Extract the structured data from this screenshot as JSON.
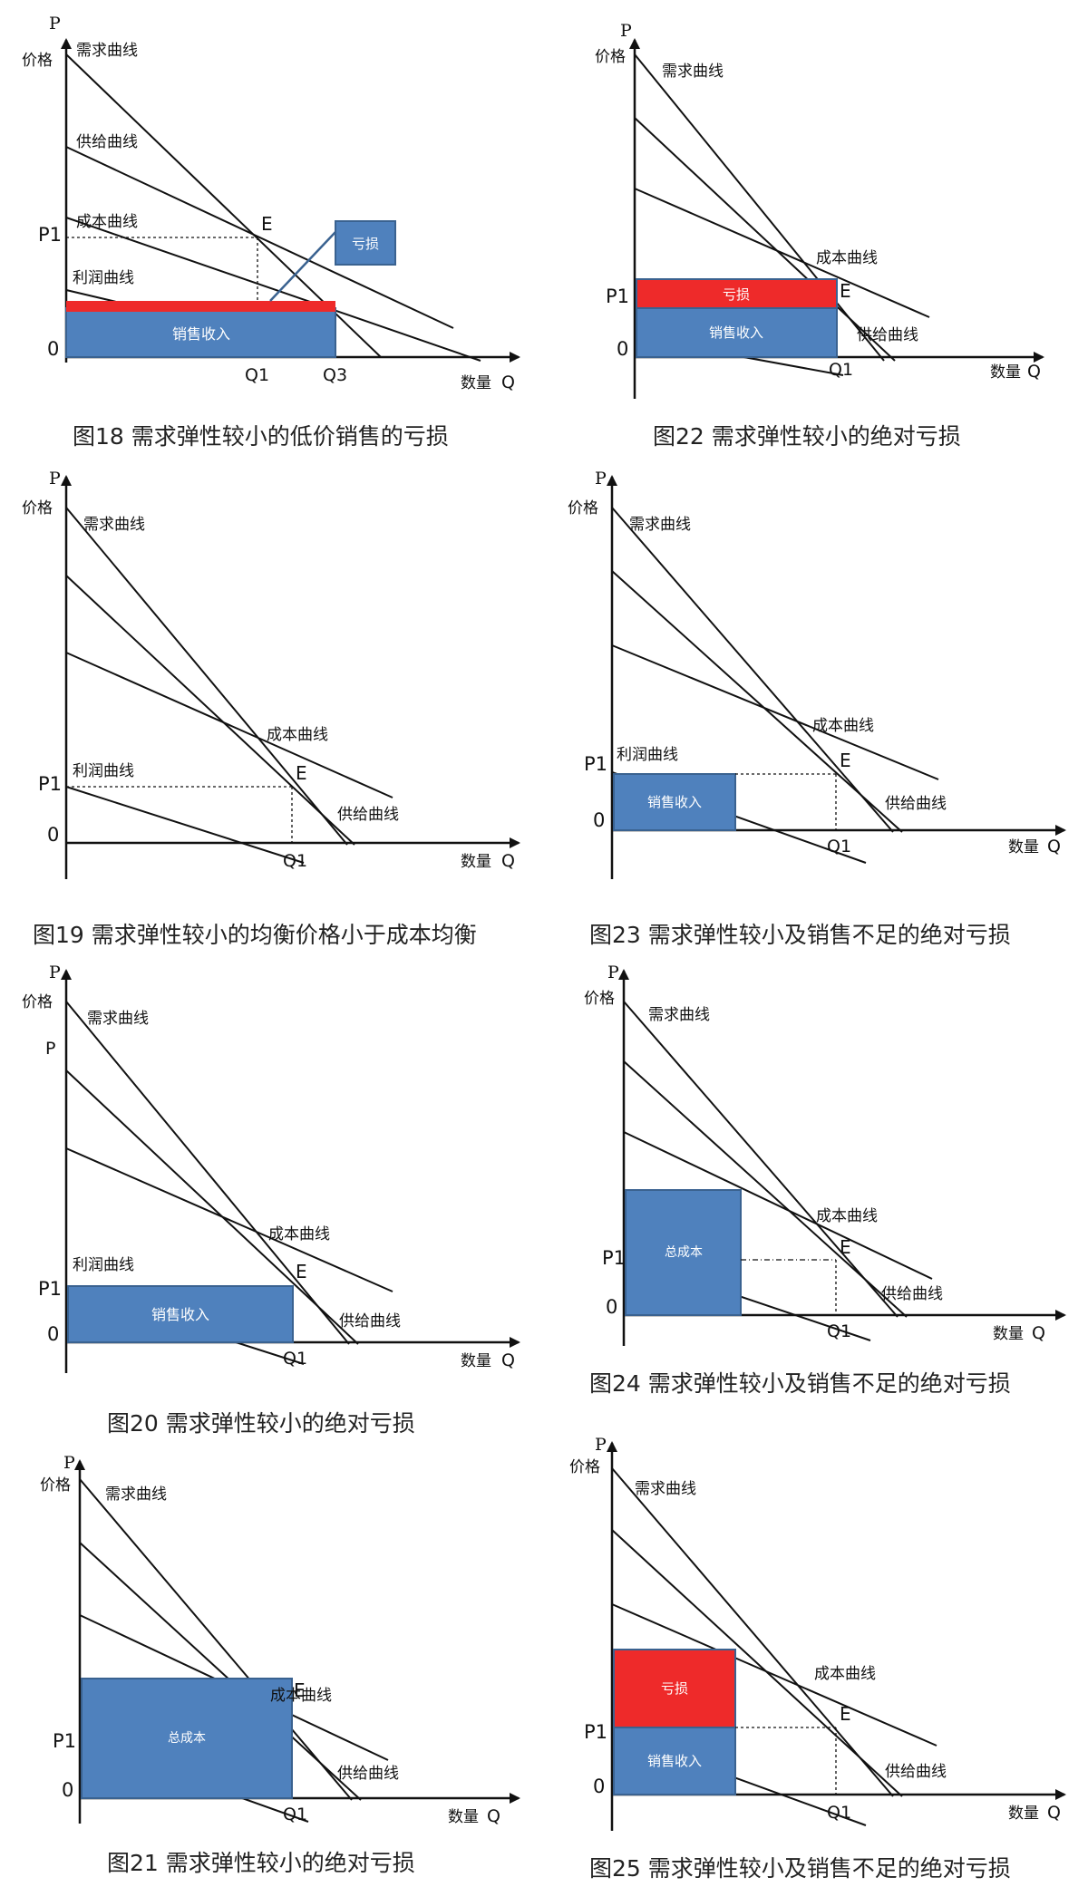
{
  "figures": [
    {
      "id": "18",
      "caption": "图18 需求弹性较小的低价销售的亏损",
      "axis": {
        "p": "P",
        "price": "价格",
        "origin": "0",
        "quantity": "数量",
        "q": "Q"
      },
      "labels": {
        "demand": "需求曲线",
        "supply": "供给曲线",
        "cost": "成本曲线",
        "profit": "利润曲线",
        "p1": "P1",
        "e": "E",
        "q1": "Q1",
        "q3": "Q3"
      },
      "boxes": {
        "revenue": "销售收入",
        "loss": "亏损"
      }
    },
    {
      "id": "22",
      "caption": "图22 需求弹性较小的绝对亏损",
      "axis": {
        "p": "P",
        "price": "价格",
        "origin": "0",
        "quantity": "数量",
        "q": "Q"
      },
      "labels": {
        "demand": "需求曲线",
        "supply": "供给曲线",
        "cost": "成本曲线",
        "p1": "P1",
        "e": "E",
        "q1": "Q1"
      },
      "boxes": {
        "revenue": "销售收入",
        "loss": "亏损"
      }
    },
    {
      "id": "19",
      "caption": "图19 需求弹性较小的均衡价格小于成本均衡",
      "axis": {
        "p": "P",
        "price": "价格",
        "origin": "0",
        "quantity": "数量",
        "q": "Q"
      },
      "labels": {
        "demand": "需求曲线",
        "supply": "供给曲线",
        "cost": "成本曲线",
        "profit": "利润曲线",
        "p1": "P1",
        "e": "E",
        "q1": "Q1"
      }
    },
    {
      "id": "23",
      "caption": "图23 需求弹性较小及销售不足的绝对亏损",
      "axis": {
        "p": "P",
        "price": "价格",
        "origin": "0",
        "quantity": "数量",
        "q": "Q"
      },
      "labels": {
        "demand": "需求曲线",
        "supply": "供给曲线",
        "cost": "成本曲线",
        "profit": "利润曲线",
        "p1": "P1",
        "e": "E",
        "q1": "Q1"
      },
      "boxes": {
        "revenue": "销售收入"
      }
    },
    {
      "id": "20",
      "caption": "图20 需求弹性较小的绝对亏损",
      "axis": {
        "p": "P",
        "price": "价格",
        "origin": "0",
        "quantity": "数量",
        "q": "Q"
      },
      "labels": {
        "demand": "需求曲线",
        "supply": "供给曲线",
        "cost": "成本曲线",
        "profit": "利润曲线",
        "p": "P",
        "p1": "P1",
        "e": "E",
        "q1": "Q1"
      },
      "boxes": {
        "revenue": "销售收入"
      }
    },
    {
      "id": "24",
      "caption": "图24 需求弹性较小及销售不足的绝对亏损",
      "axis": {
        "p": "P",
        "price": "价格",
        "origin": "0",
        "quantity": "数量",
        "q": "Q"
      },
      "labels": {
        "demand": "需求曲线",
        "supply": "供给曲线",
        "cost": "成本曲线",
        "p1": "P1",
        "e": "E",
        "q1": "Q1"
      },
      "boxes": {
        "total_cost": "总成本"
      }
    },
    {
      "id": "21",
      "caption": "图21 需求弹性较小的绝对亏损",
      "axis": {
        "p": "P",
        "price": "价格",
        "origin": "0",
        "quantity": "数量",
        "q": "Q"
      },
      "labels": {
        "demand": "需求曲线",
        "supply": "供给曲线",
        "cost": "成本曲线",
        "p1": "P1",
        "e": "E",
        "q1": "Q1"
      },
      "boxes": {
        "total_cost": "总成本"
      }
    },
    {
      "id": "25",
      "caption": "图25 需求弹性较小及销售不足的绝对亏损",
      "axis": {
        "p": "P",
        "price": "价格",
        "origin": "0",
        "quantity": "数量",
        "q": "Q"
      },
      "labels": {
        "demand": "需求曲线",
        "supply": "供给曲线",
        "cost": "成本曲线",
        "p1": "P1",
        "e": "E",
        "q1": "Q1"
      },
      "boxes": {
        "revenue": "销售收入",
        "loss": "亏损"
      }
    }
  ],
  "colors": {
    "blue_box": "#4f81bd",
    "blue_border": "#3a6290",
    "red_box": "#ee2a2a",
    "line": "#111111"
  }
}
